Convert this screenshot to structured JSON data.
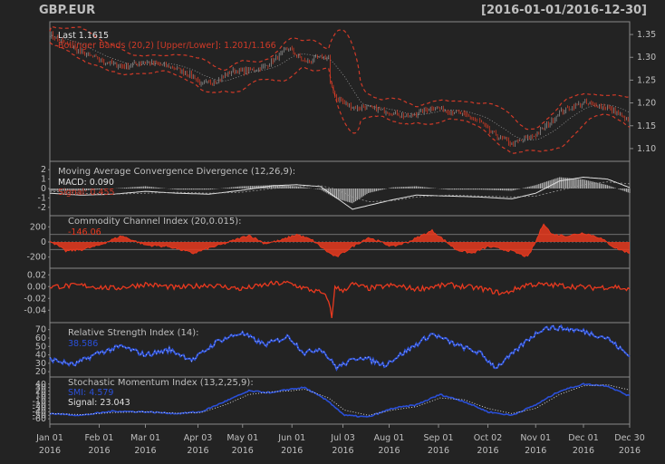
{
  "header": {
    "symbol": "GBP.EUR",
    "range": "[2016-01-01/2016-12-30]"
  },
  "colors": {
    "background": "#232323",
    "panel_border": "#8a8a8a",
    "text": "#bfbfbf",
    "candles": "#9a9a9a",
    "bands": "#d03a28",
    "red_series": "#e8391f",
    "blue_series": "#2a4fd8",
    "white_series": "#e0e0e0",
    "band_mid": "#9a9a9a"
  },
  "x_axis": {
    "ticks": [
      {
        "label": "Jan 01",
        "year": "2016",
        "day": 0
      },
      {
        "label": "Feb 01",
        "year": "2016",
        "day": 31
      },
      {
        "label": "Mar 01",
        "year": "2016",
        "day": 60
      },
      {
        "label": "Apr 03",
        "year": "2016",
        "day": 93
      },
      {
        "label": "May 01",
        "year": "2016",
        "day": 121
      },
      {
        "label": "Jun 01",
        "year": "2016",
        "day": 152
      },
      {
        "label": "Jul 03",
        "year": "2016",
        "day": 184
      },
      {
        "label": "Aug 01",
        "year": "2016",
        "day": 213
      },
      {
        "label": "Sep 01",
        "year": "2016",
        "day": 244
      },
      {
        "label": "Oct 02",
        "year": "2016",
        "day": 275
      },
      {
        "label": "Nov 01",
        "year": "2016",
        "day": 305
      },
      {
        "label": "Dec 01",
        "year": "2016",
        "day": 335
      },
      {
        "label": "Dec 30",
        "year": "2016",
        "day": 364
      }
    ]
  },
  "chart_data": [
    {
      "type": "candlestick",
      "panel": "price",
      "annotations": [
        "Last 1.1615",
        "Bollinger Bands (20,2) [Upper/Lower]: 1.201/1.166"
      ],
      "ylim": [
        1.08,
        1.37
      ],
      "yticks": [
        1.1,
        1.15,
        1.2,
        1.25,
        1.3,
        1.35
      ],
      "x_days": [
        0,
        20,
        35,
        45,
        60,
        75,
        90,
        95,
        105,
        115,
        125,
        135,
        150,
        160,
        170,
        175,
        176,
        180,
        190,
        200,
        213,
        225,
        240,
        255,
        270,
        275,
        290,
        305,
        315,
        320,
        335,
        350,
        364
      ],
      "close": [
        1.35,
        1.31,
        1.29,
        1.28,
        1.29,
        1.28,
        1.26,
        1.24,
        1.25,
        1.27,
        1.27,
        1.28,
        1.32,
        1.29,
        1.3,
        1.3,
        1.24,
        1.21,
        1.19,
        1.19,
        1.18,
        1.17,
        1.19,
        1.18,
        1.16,
        1.14,
        1.11,
        1.13,
        1.16,
        1.18,
        1.2,
        1.19,
        1.16
      ]
    },
    {
      "type": "line",
      "panel": "macd",
      "title": "Moving Average Convergence Divergence (12,26,9):",
      "legend": [
        "MACD: 0.090",
        "Signal: 0.455"
      ],
      "ylim": [
        -2.5,
        2.5
      ],
      "yticks": [
        2,
        1,
        0,
        -1,
        -2
      ],
      "x_days": [
        0,
        20,
        40,
        60,
        80,
        100,
        120,
        140,
        155,
        170,
        180,
        190,
        200,
        215,
        230,
        250,
        270,
        290,
        305,
        320,
        335,
        350,
        364
      ],
      "series": [
        {
          "name": "MACD",
          "values": [
            -0.5,
            -0.7,
            -0.6,
            -0.3,
            -0.5,
            -0.6,
            -0.2,
            0.3,
            0.4,
            0.2,
            -1.0,
            -2.2,
            -1.8,
            -1.2,
            -0.7,
            -0.8,
            -0.9,
            -1.1,
            -0.5,
            0.8,
            1.2,
            1.0,
            0.1
          ]
        },
        {
          "name": "Signal",
          "values": [
            -0.3,
            -0.5,
            -0.6,
            -0.5,
            -0.4,
            -0.5,
            -0.4,
            0.0,
            0.2,
            0.3,
            -0.1,
            -0.9,
            -1.4,
            -1.3,
            -0.9,
            -0.7,
            -0.8,
            -0.9,
            -0.8,
            -0.2,
            0.4,
            0.7,
            0.5
          ]
        }
      ]
    },
    {
      "type": "area",
      "panel": "cci",
      "title": "Commodity Channel Index (20,0.015):",
      "legend": [
        "-146.06"
      ],
      "ylim": [
        -300,
        300
      ],
      "yticks": [
        200,
        0,
        -200
      ],
      "reference_lines": [
        100,
        0,
        -100
      ],
      "x_days": [
        0,
        10,
        20,
        30,
        45,
        60,
        75,
        90,
        100,
        110,
        125,
        135,
        145,
        155,
        165,
        175,
        180,
        190,
        200,
        215,
        225,
        240,
        255,
        265,
        275,
        290,
        300,
        305,
        310,
        315,
        325,
        335,
        345,
        355,
        364
      ],
      "values": [
        20,
        -120,
        -100,
        -50,
        80,
        -40,
        -60,
        -150,
        -80,
        -20,
        90,
        -20,
        20,
        100,
        20,
        -140,
        -200,
        -60,
        60,
        -60,
        0,
        150,
        -100,
        -150,
        -60,
        -120,
        -200,
        0,
        250,
        100,
        80,
        120,
        60,
        -80,
        -146
      ]
    },
    {
      "type": "line",
      "panel": "roc",
      "title": "",
      "ylim": [
        -0.055,
        0.025
      ],
      "yticks": [
        0.02,
        0.0,
        -0.02,
        -0.04
      ],
      "x_days": [
        0,
        20,
        40,
        60,
        80,
        100,
        120,
        140,
        150,
        160,
        170,
        175,
        177,
        179,
        183,
        190,
        200,
        215,
        230,
        250,
        270,
        285,
        300,
        320,
        340,
        355,
        364
      ],
      "values": [
        0.0,
        0.002,
        -0.003,
        0.004,
        -0.002,
        0.003,
        -0.004,
        0.005,
        0.006,
        -0.003,
        -0.01,
        -0.022,
        -0.055,
        0.002,
        -0.008,
        0.004,
        -0.003,
        0.002,
        -0.004,
        0.003,
        -0.003,
        -0.012,
        0.004,
        0.002,
        -0.002,
        0.0,
        -0.006
      ]
    },
    {
      "type": "line",
      "panel": "rsi",
      "title": "Relative Strength Index (14):",
      "legend": [
        "38.586"
      ],
      "ylim": [
        18,
        74
      ],
      "yticks": [
        70,
        60,
        50,
        40,
        30,
        20
      ],
      "x_days": [
        0,
        15,
        30,
        45,
        60,
        75,
        90,
        105,
        120,
        135,
        150,
        160,
        170,
        180,
        195,
        210,
        225,
        240,
        255,
        270,
        280,
        290,
        300,
        310,
        320,
        335,
        350,
        364
      ],
      "values": [
        35,
        28,
        42,
        50,
        40,
        46,
        34,
        56,
        66,
        52,
        62,
        42,
        48,
        25,
        38,
        28,
        46,
        65,
        52,
        42,
        25,
        40,
        58,
        72,
        72,
        68,
        60,
        38
      ]
    },
    {
      "type": "line",
      "panel": "smi",
      "title": "Stochastic Momentum Index (13,2,25,9):",
      "legend": [
        "SMI: 4.579",
        "Signal: 23.043"
      ],
      "ylim": [
        -65,
        50
      ],
      "yticks": [
        40,
        30,
        20,
        10,
        0,
        -10,
        -20,
        -30,
        -40,
        -50,
        -60
      ],
      "x_days": [
        0,
        20,
        40,
        60,
        80,
        95,
        110,
        125,
        140,
        150,
        160,
        175,
        185,
        200,
        215,
        230,
        245,
        260,
        275,
        290,
        305,
        320,
        335,
        350,
        364
      ],
      "series": [
        {
          "name": "SMI",
          "values": [
            -45,
            -50,
            -38,
            -40,
            -45,
            -40,
            -10,
            20,
            15,
            25,
            30,
            -10,
            -50,
            -55,
            -30,
            -20,
            10,
            -10,
            -40,
            -50,
            -20,
            20,
            40,
            35,
            5
          ]
        },
        {
          "name": "Signal",
          "values": [
            -45,
            -48,
            -42,
            -40,
            -44,
            -42,
            -20,
            10,
            18,
            20,
            25,
            0,
            -35,
            -50,
            -35,
            -25,
            0,
            -5,
            -30,
            -45,
            -30,
            10,
            35,
            38,
            23
          ]
        }
      ]
    }
  ]
}
